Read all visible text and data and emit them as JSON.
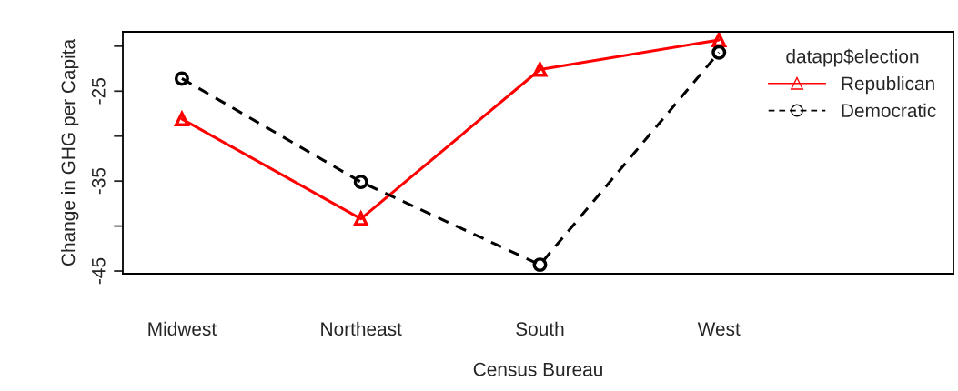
{
  "chart_data": {
    "type": "line",
    "xlabel": "Census Bureau",
    "ylabel": "Change in GHG per Capita",
    "legend_title": "datapp$election",
    "categories": [
      "Midwest",
      "Northeast",
      "South",
      "West"
    ],
    "series": [
      {
        "name": "Republican",
        "color": "#ff0000",
        "marker": "triangle",
        "line_style": "solid",
        "values": [
          -28.1,
          -39.2,
          -22.6,
          -19.3
        ]
      },
      {
        "name": "Democratic",
        "color": "#000000",
        "marker": "circle",
        "line_style": "dashed",
        "values": [
          -23.6,
          -35.1,
          -44.3,
          -20.7
        ]
      }
    ],
    "ylim": [
      -45.3,
      -18.4
    ],
    "yticks": [
      -45,
      {
        "value": -40,
        "label": null
      },
      -35,
      {
        "value": -30,
        "label": null
      },
      -25,
      {
        "value": -20,
        "label": null
      }
    ],
    "legend": "top right",
    "grid": false
  }
}
